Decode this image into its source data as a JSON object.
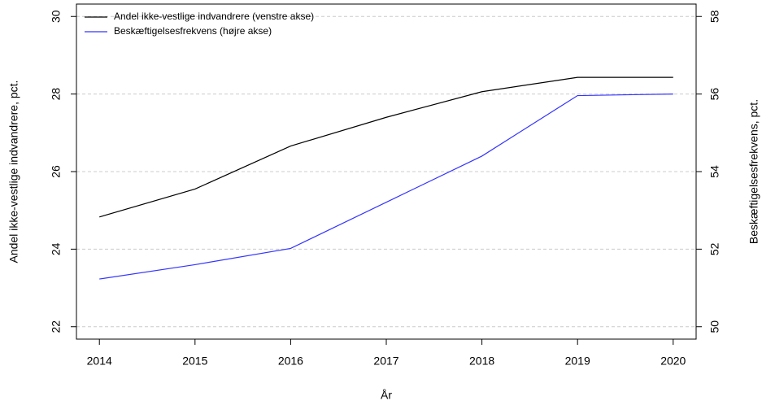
{
  "chart_data": {
    "type": "line",
    "x_label": "År",
    "y_label": "Andel ikke-vestlige indvandrere, pct.",
    "y2_label": "Beskæftigelsesfrekvens, pct.",
    "x": [
      2014,
      2015,
      2016,
      2017,
      2018,
      2019,
      2020
    ],
    "xlim": [
      2013.76,
      2020.24
    ],
    "xticks": [
      2014,
      2015,
      2016,
      2017,
      2018,
      2019,
      2020
    ],
    "ylim": [
      21.68,
      30.32
    ],
    "yticks": [
      22,
      24,
      26,
      28,
      30
    ],
    "y2lim": [
      49.68,
      58.32
    ],
    "y2ticks": [
      50,
      52,
      54,
      56,
      58
    ],
    "grid": true,
    "legend": "top-left",
    "series": [
      {
        "name": "Andel ikke-vestlige indvandrere (venstre akse)",
        "color": "#000000",
        "values": [
          24.83,
          25.55,
          26.66,
          27.4,
          28.06,
          28.43,
          28.43
        ]
      },
      {
        "name": "Beskæftigelsesfrekvens (højre akse)",
        "color": "#3333ff",
        "axis": "y2",
        "values": [
          51.23,
          51.6,
          52.02,
          53.21,
          54.4,
          55.96,
          56.0
        ]
      }
    ]
  }
}
